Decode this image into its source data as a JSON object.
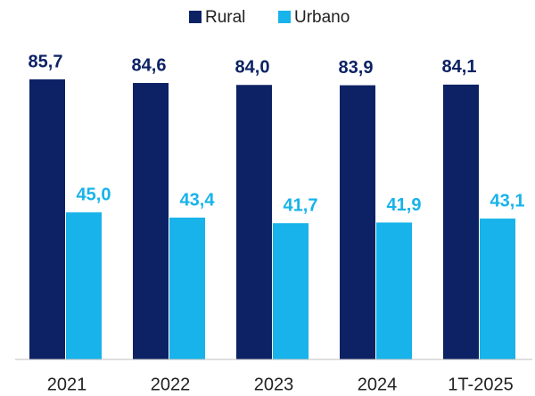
{
  "chart_data": {
    "type": "bar",
    "categories": [
      "2021",
      "2022",
      "2023",
      "2024",
      "1T-2025"
    ],
    "series": [
      {
        "name": "Rural",
        "color": "#0c2264",
        "values": [
          85.7,
          84.6,
          84.0,
          83.9,
          84.1
        ],
        "value_labels": [
          "85,7",
          "84,6",
          "84,0",
          "83,9",
          "84,1"
        ]
      },
      {
        "name": "Urbano",
        "color": "#17b3ea",
        "values": [
          45.0,
          43.4,
          41.7,
          41.9,
          43.1
        ],
        "value_labels": [
          "45,0",
          "43,4",
          "41,7",
          "41,9",
          "43,1"
        ]
      }
    ]
  }
}
